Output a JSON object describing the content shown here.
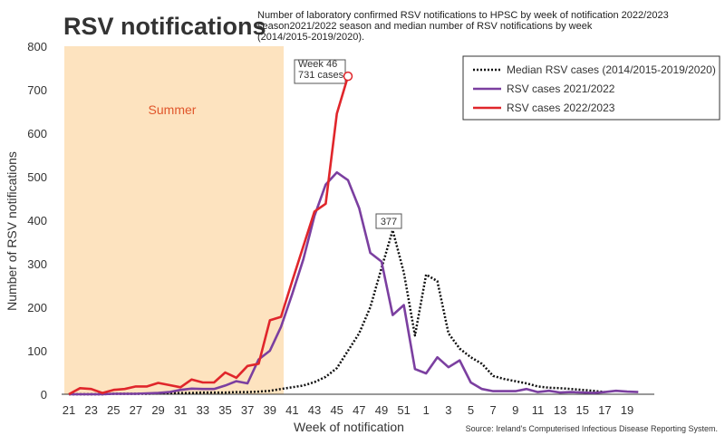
{
  "chart_data": {
    "type": "line",
    "title": "RSV notifications",
    "subtitle": [
      "Number of laboratory confirmed RSV notifications to HPSC by week of notification 2022/2023",
      "season2021/2022 season and median number of RSV notifications by week",
      "(2014/2015-2019/2020)."
    ],
    "x_label": "Week of notification",
    "y_label": "Number of RSV notifications",
    "source": "Source: Ireland's Computerised Infectious Disease Reporting System.",
    "shaded_label": "Summer",
    "annotations": [
      "Week 46",
      "731 cases",
      "377"
    ],
    "categories": [
      "21",
      null,
      "23",
      null,
      "25",
      null,
      "27",
      null,
      "29",
      null,
      "31",
      null,
      "33",
      null,
      "35",
      null,
      "37",
      null,
      "39",
      null,
      "41",
      null,
      "43",
      null,
      "45",
      null,
      "47",
      null,
      "49",
      null,
      "51",
      null,
      "1",
      null,
      "3",
      null,
      "5",
      null,
      "7",
      null,
      "9",
      null,
      "11",
      null,
      "13",
      null,
      "15",
      null,
      "17",
      null,
      "19",
      null
    ],
    "series": [
      {
        "name": "Median RSV cases (2014/2015-2019/2020)",
        "color": "#111111",
        "dash": true,
        "values": [
          0,
          0,
          0,
          0,
          1,
          1,
          1,
          1,
          2,
          2,
          3,
          3,
          4,
          4,
          4,
          5,
          5,
          6,
          8,
          12,
          16,
          20,
          28,
          40,
          60,
          100,
          140,
          200,
          290,
          377,
          280,
          135,
          275,
          260,
          140,
          105,
          85,
          70,
          42,
          35,
          30,
          25,
          18,
          15,
          14,
          12,
          10,
          8,
          5,
          null,
          null,
          null
        ]
      },
      {
        "name": "RSV cases 2021/2022",
        "color": "#7b3fa0",
        "dash": false,
        "values": [
          0,
          0,
          0,
          0,
          1,
          1,
          1,
          2,
          3,
          5,
          10,
          13,
          12,
          12,
          20,
          30,
          25,
          80,
          100,
          155,
          230,
          310,
          410,
          482,
          510,
          492,
          428,
          325,
          305,
          182,
          205,
          58,
          48,
          85,
          62,
          78,
          27,
          12,
          7,
          7,
          7,
          12,
          5,
          8,
          4,
          5,
          4,
          3,
          5,
          8,
          6,
          5
        ]
      },
      {
        "name": "RSV cases 2022/2023",
        "color": "#e0262b",
        "dash": false,
        "values": [
          0,
          14,
          12,
          3,
          10,
          12,
          18,
          18,
          26,
          21,
          16,
          34,
          27,
          27,
          50,
          38,
          65,
          70,
          170,
          178,
          260,
          340,
          420,
          438,
          645,
          731,
          null,
          null,
          null,
          null,
          null,
          null,
          null,
          null,
          null,
          null,
          null,
          null,
          null,
          null,
          null,
          null,
          null,
          null,
          null,
          null,
          null,
          null,
          null,
          null,
          null,
          null
        ]
      }
    ],
    "ylim": [
      0,
      800
    ],
    "yticks": [
      0,
      100,
      200,
      300,
      400,
      500,
      600,
      700,
      800
    ],
    "grid": false,
    "legend": "top-right"
  }
}
